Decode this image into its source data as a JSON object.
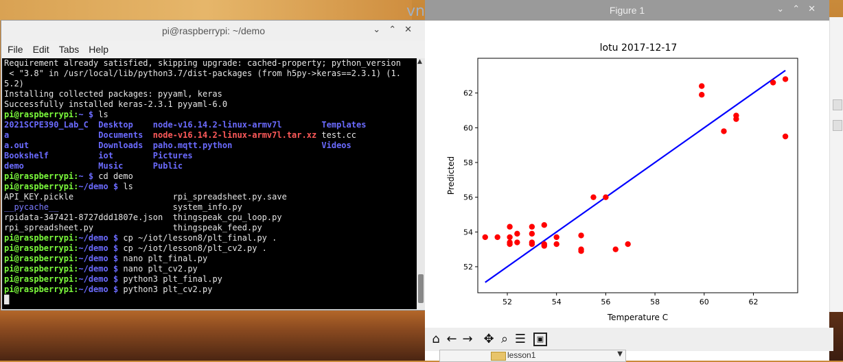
{
  "desktop": {
    "vnc_fragment": "vn",
    "folder_label": "lesson1"
  },
  "terminal": {
    "title": "pi@raspberrypi: ~/demo",
    "menu": [
      "File",
      "Edit",
      "Tabs",
      "Help"
    ],
    "lines": [
      [
        [
          "",
          "Requirement already satisfied, skipping upgrade: cached-property; python_version"
        ]
      ],
      [
        [
          "",
          " < \"3.8\" in /usr/local/lib/python3.7/dist-packages (from h5py->keras==2.3.1) (1."
        ]
      ],
      [
        [
          "",
          "5.2)"
        ]
      ],
      [
        [
          "",
          "Installing collected packages: pyyaml, keras"
        ]
      ],
      [
        [
          "",
          "Successfully installed keras-2.3.1 pyyaml-6.0"
        ]
      ],
      [
        [
          "g",
          "pi@raspberrypi:"
        ],
        [
          "b",
          "~ $"
        ],
        [
          "",
          " ls"
        ]
      ],
      [
        [
          "b",
          "2021SCPE390_Lab_C"
        ],
        [
          "",
          "  "
        ],
        [
          "b",
          "Desktop"
        ],
        [
          "",
          "    "
        ],
        [
          "b",
          "node-v16.14.2-linux-armv7l"
        ],
        [
          "",
          "        "
        ],
        [
          "b",
          "Templates"
        ]
      ],
      [
        [
          "b",
          "a"
        ],
        [
          "",
          "                  "
        ],
        [
          "b",
          "Documents"
        ],
        [
          "",
          "  "
        ],
        [
          "r",
          "node-v16.14.2-linux-armv7l.tar.xz"
        ],
        [
          "",
          " test.cc"
        ]
      ],
      [
        [
          "b",
          "a.out"
        ],
        [
          "",
          "              "
        ],
        [
          "b",
          "Downloads"
        ],
        [
          "",
          "  "
        ],
        [
          "b",
          "paho.mqtt.python"
        ],
        [
          "",
          "                  "
        ],
        [
          "b",
          "Videos"
        ]
      ],
      [
        [
          "b",
          "Bookshelf"
        ],
        [
          "",
          "          "
        ],
        [
          "b",
          "iot"
        ],
        [
          "",
          "        "
        ],
        [
          "b",
          "Pictures"
        ]
      ],
      [
        [
          "b",
          "demo"
        ],
        [
          "",
          "               "
        ],
        [
          "b",
          "Music"
        ],
        [
          "",
          "      "
        ],
        [
          "b",
          "Public"
        ]
      ],
      [
        [
          "g",
          "pi@raspberrypi:"
        ],
        [
          "b",
          "~ $"
        ],
        [
          "",
          " cd demo"
        ]
      ],
      [
        [
          "g",
          "pi@raspberrypi:"
        ],
        [
          "b",
          "~/demo $"
        ],
        [
          "",
          " ls"
        ]
      ],
      [
        [
          "",
          "API_KEY.pickle                    rpi_spreadsheet.py.save"
        ]
      ],
      [
        [
          "bl",
          "__pycache__"
        ],
        [
          "",
          "                       system_info.py"
        ]
      ],
      [
        [
          "",
          "rpidata-347421-8727ddd1807e.json  thingspeak_cpu_loop.py"
        ]
      ],
      [
        [
          "",
          "rpi_spreadsheet.py                thingspeak_feed.py"
        ]
      ],
      [
        [
          "g",
          "pi@raspberrypi:"
        ],
        [
          "b",
          "~/demo $"
        ],
        [
          "",
          " cp ~/iot/lesson8/plt_final.py ."
        ]
      ],
      [
        [
          "g",
          "pi@raspberrypi:"
        ],
        [
          "b",
          "~/demo $"
        ],
        [
          "",
          " cp ~/iot/lesson8/plt_cv2.py ."
        ]
      ],
      [
        [
          "g",
          "pi@raspberrypi:"
        ],
        [
          "b",
          "~/demo $"
        ],
        [
          "",
          " nano plt_final.py"
        ]
      ],
      [
        [
          "g",
          "pi@raspberrypi:"
        ],
        [
          "b",
          "~/demo $"
        ],
        [
          "",
          " nano plt_cv2.py"
        ]
      ],
      [
        [
          "g",
          "pi@raspberrypi:"
        ],
        [
          "b",
          "~/demo $"
        ],
        [
          "",
          " python3 plt_final.py"
        ]
      ],
      [
        [
          "g",
          "pi@raspberrypi:"
        ],
        [
          "b",
          "~/demo $"
        ],
        [
          "",
          " python3 plt_cv2.py"
        ]
      ],
      [
        [
          "",
          "█"
        ]
      ]
    ]
  },
  "figure": {
    "window_title": "Figure 1",
    "toolbar_icons": [
      "home-icon",
      "back-icon",
      "forward-icon",
      "pan-icon",
      "zoom-icon",
      "configure-icon",
      "save-icon"
    ]
  },
  "chart_data": {
    "type": "scatter",
    "title": "lotu 2017-12-17",
    "xlabel": "Temperature C",
    "ylabel": "Predicted",
    "xlim": [
      50.8,
      63.8
    ],
    "ylim": [
      50.5,
      64.0
    ],
    "xticks": [
      52,
      54,
      56,
      58,
      60,
      62
    ],
    "yticks": [
      52,
      54,
      56,
      58,
      60,
      62
    ],
    "point_color": "#ff0000",
    "line_color": "#0000ff",
    "points": [
      [
        51.1,
        53.7
      ],
      [
        51.6,
        53.7
      ],
      [
        52.1,
        54.3
      ],
      [
        52.1,
        53.7
      ],
      [
        52.1,
        53.4
      ],
      [
        52.1,
        53.3
      ],
      [
        52.4,
        53.9
      ],
      [
        52.4,
        53.4
      ],
      [
        53.0,
        54.3
      ],
      [
        53.0,
        53.9
      ],
      [
        53.0,
        53.4
      ],
      [
        53.0,
        53.3
      ],
      [
        53.5,
        54.4
      ],
      [
        53.5,
        53.3
      ],
      [
        53.5,
        53.2
      ],
      [
        54.0,
        53.7
      ],
      [
        54.0,
        53.3
      ],
      [
        55.0,
        53.8
      ],
      [
        55.0,
        53.0
      ],
      [
        55.0,
        52.9
      ],
      [
        55.5,
        56.0
      ],
      [
        56.0,
        56.0
      ],
      [
        56.4,
        53.0
      ],
      [
        56.9,
        53.3
      ],
      [
        59.9,
        62.4
      ],
      [
        59.9,
        61.9
      ],
      [
        60.8,
        59.8
      ],
      [
        61.3,
        60.7
      ],
      [
        61.3,
        60.5
      ],
      [
        62.8,
        62.6
      ],
      [
        63.3,
        62.8
      ],
      [
        63.3,
        59.5
      ]
    ],
    "fit_line": [
      [
        51.1,
        51.1
      ],
      [
        63.3,
        63.3
      ]
    ]
  }
}
